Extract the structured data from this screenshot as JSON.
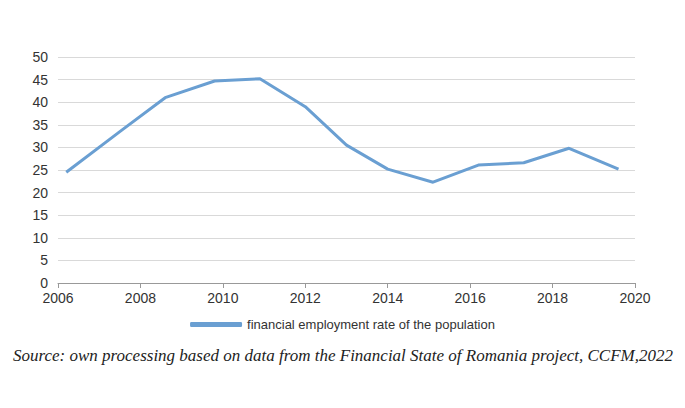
{
  "chart_data": {
    "type": "line",
    "source": "Source: own processing based on data from the Financial State of Romania project, CCFM,2022",
    "x": [
      2006.2,
      2007.5,
      2008.6,
      2009.8,
      2010.9,
      2012.0,
      2013.0,
      2014.0,
      2015.1,
      2016.2,
      2017.3,
      2018.4,
      2019.6
    ],
    "series": [
      {
        "name": "financial employment rate of the population",
        "color": "#6a9fd2",
        "values": [
          24.5,
          33.5,
          41,
          44.7,
          45.2,
          39,
          30.5,
          25.2,
          22.3,
          26.1,
          26.6,
          29.8,
          25.2
        ]
      }
    ],
    "xlim": [
      2006,
      2020
    ],
    "xticks": [
      2006,
      2008,
      2010,
      2012,
      2014,
      2016,
      2018,
      2020
    ],
    "ylim": [
      0,
      50
    ],
    "yticks": [
      0,
      5,
      10,
      15,
      20,
      25,
      30,
      35,
      40,
      45,
      50
    ],
    "grid": true,
    "legend": "bottom"
  }
}
